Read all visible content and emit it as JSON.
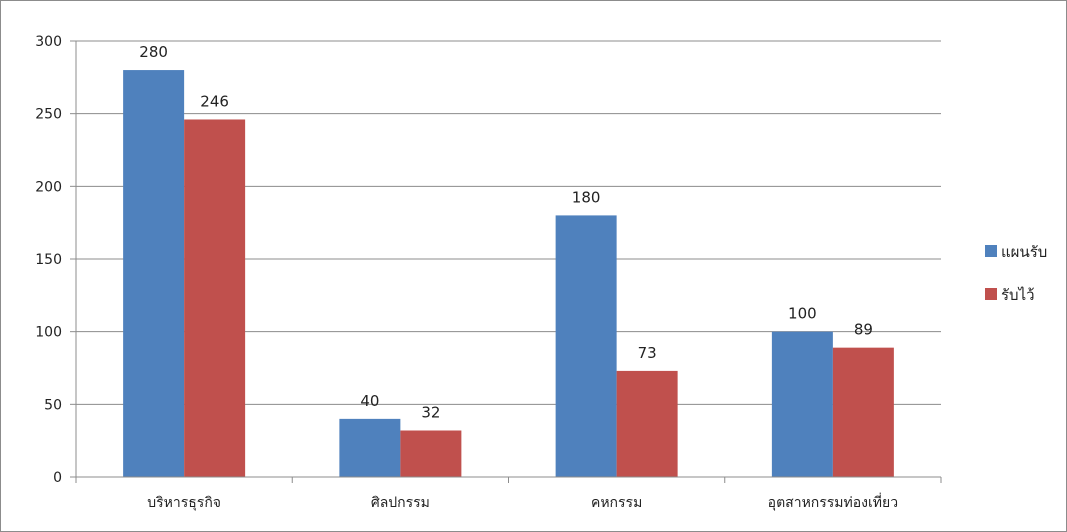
{
  "chart_data": {
    "type": "bar",
    "title": "",
    "xlabel": "",
    "ylabel": "",
    "categories": [
      "บริหารธุรกิจ",
      "ศิลปกรรม",
      "คหกรรม",
      "อุตสาหกรรมท่องเที่ยว"
    ],
    "series": [
      {
        "name": "แผนรับ",
        "values": [
          280,
          40,
          180,
          100
        ],
        "color": "#4F81BD"
      },
      {
        "name": "รับไว้",
        "values": [
          246,
          32,
          73,
          89
        ],
        "color": "#C0504D"
      }
    ],
    "ylim": [
      0,
      300
    ],
    "yticks": [
      0,
      50,
      100,
      150,
      200,
      250,
      300
    ],
    "grid": true,
    "data_labels": true,
    "legend_position": "right"
  }
}
